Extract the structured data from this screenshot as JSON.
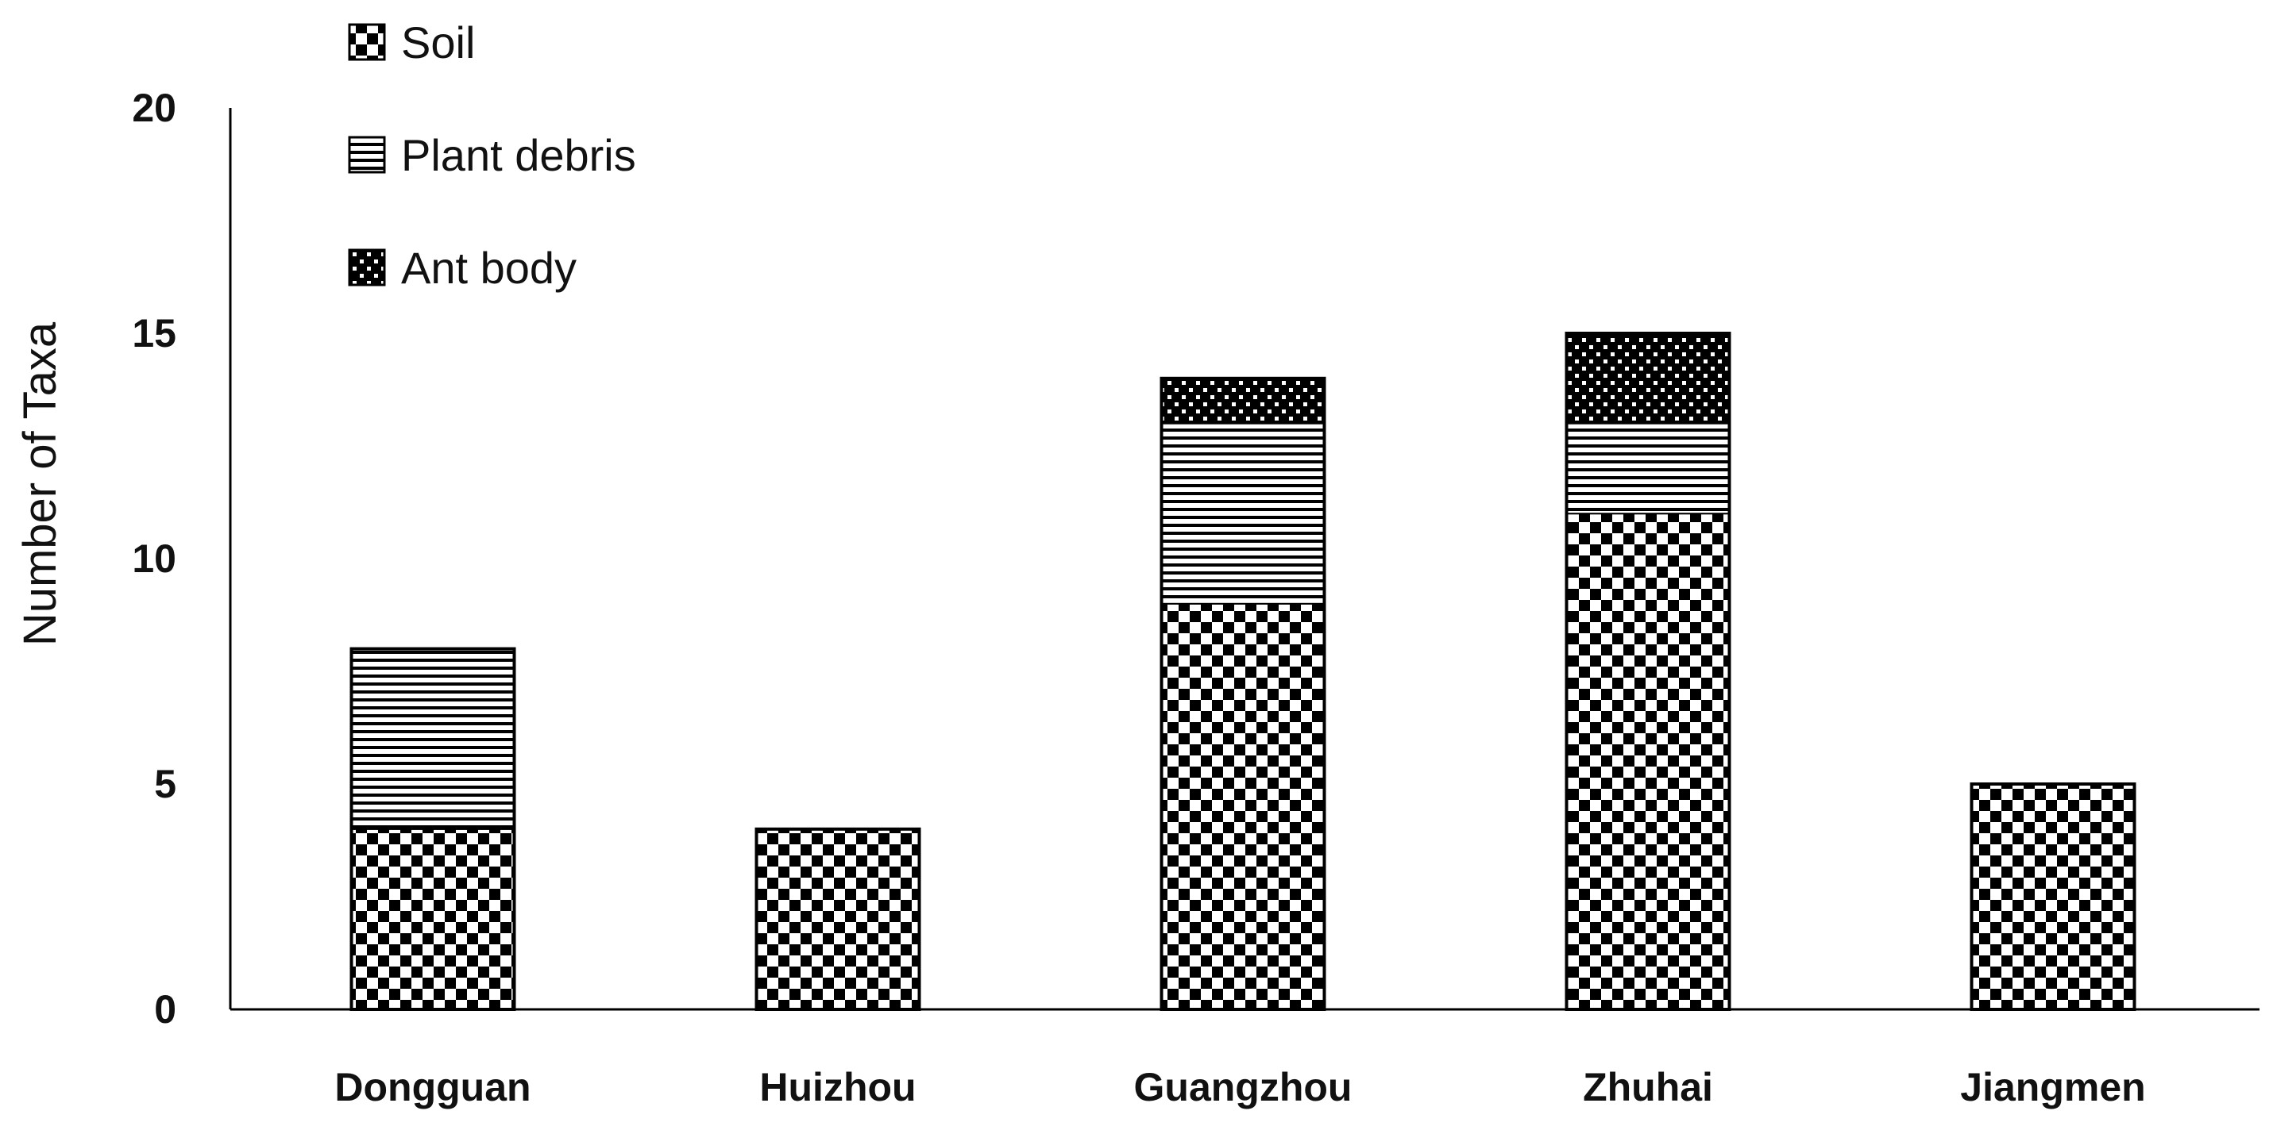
{
  "chart_data": {
    "type": "bar",
    "stacked": true,
    "title": "",
    "xlabel": "",
    "ylabel": "Number of Taxa",
    "ylim": [
      0,
      20
    ],
    "yticks": [
      0,
      5,
      10,
      15,
      20
    ],
    "grid": false,
    "legend_position": "top-left",
    "categories": [
      "Dongguan",
      "Huizhou",
      "Guangzhou",
      "Zhuhai",
      "Jiangmen"
    ],
    "series": [
      {
        "name": "Soil",
        "pattern": "checkerboard",
        "values": [
          4,
          4,
          9,
          11,
          5
        ]
      },
      {
        "name": "Plant debris",
        "pattern": "horizontal-stripes",
        "values": [
          4,
          0,
          4,
          2,
          0
        ]
      },
      {
        "name": "Ant body",
        "pattern": "dotted",
        "values": [
          0,
          0,
          1,
          2,
          0
        ]
      }
    ],
    "legend_order": [
      "Soil",
      "Plant debris",
      "Ant body"
    ],
    "colors": {
      "ink": "#000000",
      "background": "#ffffff"
    }
  }
}
